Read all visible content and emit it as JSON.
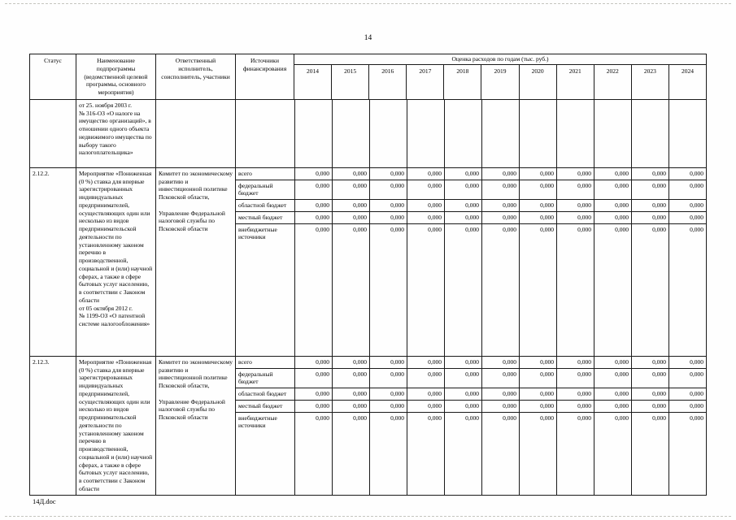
{
  "page": {
    "number": "14",
    "footer_filename": "14Д.doc"
  },
  "table": {
    "headers": {
      "status": "Статус",
      "name": "Наименование подпрограммы (ведомственной целевой программы, основного мероприятия)",
      "executor": "Ответственный исполнитель, соисполнитель, участники",
      "sources": "Источники финансирования",
      "estimate": "Оценка расходов по годам (тыс. руб.)",
      "years": [
        "2014",
        "2015",
        "2016",
        "2017",
        "2018",
        "2019",
        "2020",
        "2021",
        "2022",
        "2023",
        "2024"
      ]
    },
    "rows": [
      {
        "status": "",
        "name": "от 25. ноября 2003 г.\n№ 316-ОЗ «О налоге на имущество организаций», в отношении одного объекта недвижимого имущества по выбору такого налогоплательщика»",
        "executor": "",
        "funding": []
      },
      {
        "status": "2.12.2.",
        "name": "Мероприятие «Пониженная (0 %) ставка для впервые зарегистрированных индивидуальных предпринимателей, осуществляющих один или несколько из видов предпринимательской деятельности по установленному законом перечню в производственной, социальной и (или) научной сферах, а также в сфере бытовых услуг населению, в соответствии с Законом области\nот 05 октября 2012 г.\n№ 1199-ОЗ «О патентной системе налогообложения»",
        "executor": "Комитет по экономическому развитию и инвестиционной политике Псковской области,\n\nУправление Федеральной налоговой службы по Псковской области",
        "funding": [
          {
            "source": "всего",
            "values": [
              "0,000",
              "0,000",
              "0,000",
              "0,000",
              "0,000",
              "0,000",
              "0,000",
              "0,000",
              "0,000",
              "0,000",
              "0,000"
            ]
          },
          {
            "source": "федеральный бюджет",
            "values": [
              "0,000",
              "0,000",
              "0,000",
              "0,000",
              "0,000",
              "0,000",
              "0,000",
              "0,000",
              "0,000",
              "0,000",
              "0,000"
            ]
          },
          {
            "source": "областной бюджет",
            "values": [
              "0,000",
              "0,000",
              "0,000",
              "0,000",
              "0,000",
              "0,000",
              "0,000",
              "0,000",
              "0,000",
              "0,000",
              "0,000"
            ]
          },
          {
            "source": "местный бюджет",
            "values": [
              "0,000",
              "0,000",
              "0,000",
              "0,000",
              "0,000",
              "0,000",
              "0,000",
              "0,000",
              "0,000",
              "0,000",
              "0,000"
            ]
          },
          {
            "source": "внебюджетные источники",
            "values": [
              "0,000",
              "0,000",
              "0,000",
              "0,000",
              "0,000",
              "0,000",
              "0,000",
              "0,000",
              "0,000",
              "0,000",
              "0,000"
            ]
          }
        ]
      },
      {
        "status": "2.12.3.",
        "name": "Мероприятие «Пониженная (0 %) ставка для впервые зарегистрированных индивидуальных предпринимателей, осуществляющих один или несколько из видов предпринимательской деятельности по установленному законом перечню в производственной, социальной и (или) научной сферах, а также в сфере бытовых услуг населению, в соответствии с Законом области",
        "executor": "Комитет по экономическому развитию и инвестиционной политике Псковской области,\n\nУправление Федеральной налоговой службы по Псковской области",
        "funding": [
          {
            "source": "всего",
            "values": [
              "0,000",
              "0,000",
              "0,000",
              "0,000",
              "0,000",
              "0,000",
              "0,000",
              "0,000",
              "0,000",
              "0,000",
              "0,000"
            ]
          },
          {
            "source": "федеральный бюджет",
            "values": [
              "0,000",
              "0,000",
              "0,000",
              "0,000",
              "0,000",
              "0,000",
              "0,000",
              "0,000",
              "0,000",
              "0,000",
              "0,000"
            ]
          },
          {
            "source": "областной бюджет",
            "values": [
              "0,000",
              "0,000",
              "0,000",
              "0,000",
              "0,000",
              "0,000",
              "0,000",
              "0,000",
              "0,000",
              "0,000",
              "0,000"
            ]
          },
          {
            "source": "местный бюджет",
            "values": [
              "0,000",
              "0,000",
              "0,000",
              "0,000",
              "0,000",
              "0,000",
              "0,000",
              "0,000",
              "0,000",
              "0,000",
              "0,000"
            ]
          },
          {
            "source": "внебюджетные источники",
            "values": [
              "0,000",
              "0,000",
              "0,000",
              "0,000",
              "0,000",
              "0,000",
              "0,000",
              "0,000",
              "0,000",
              "0,000",
              "0,000"
            ]
          }
        ]
      }
    ]
  }
}
